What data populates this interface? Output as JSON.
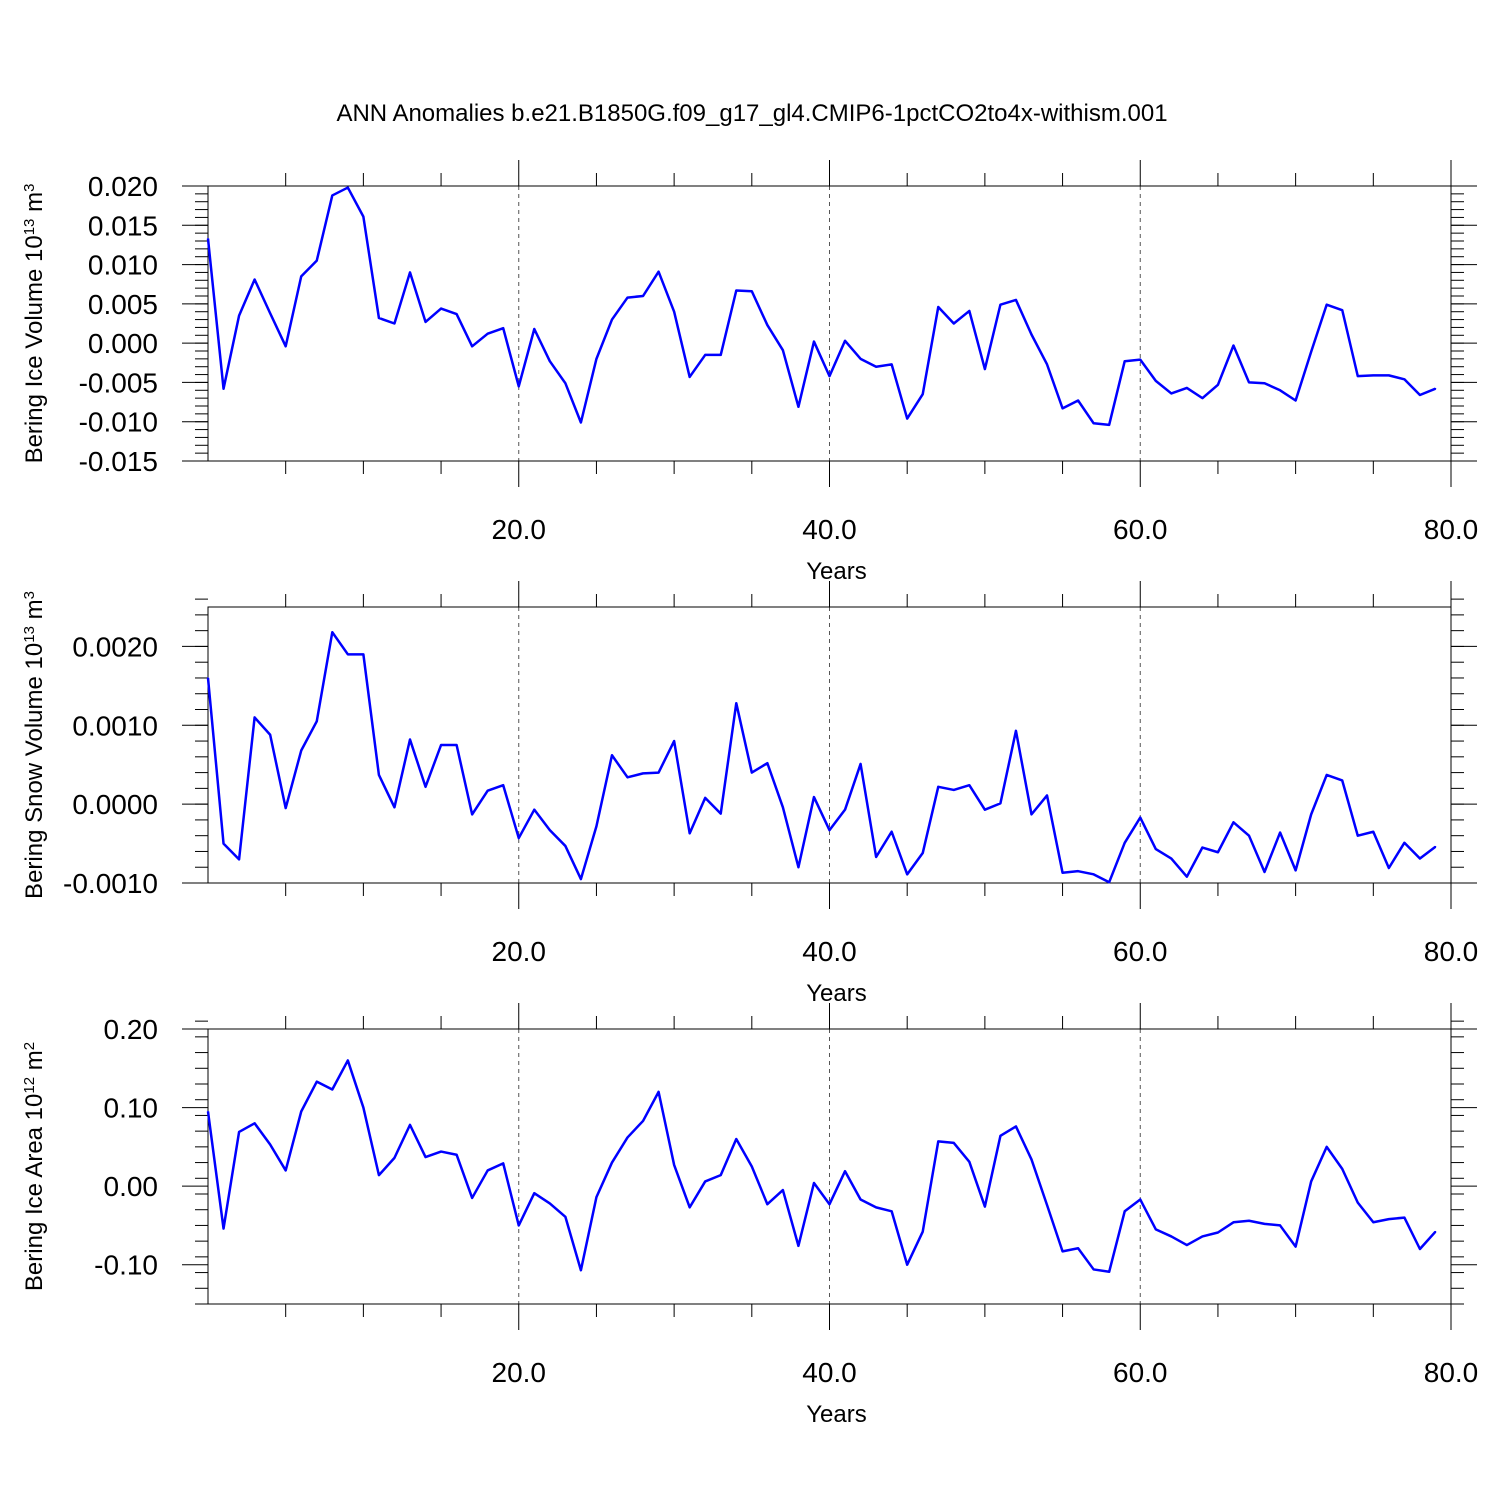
{
  "title": "ANN Anomalies b.e21.B1850G.f09_g17_gl4.CMIP6-1pctCO2to4x-withism.001",
  "colors": {
    "series": "#0000ff",
    "axis": "#000000",
    "grid": "#555555"
  },
  "chart_data": [
    {
      "type": "line",
      "ylabel": {
        "prefix": "Bering Ice Volume 10",
        "exp": "13",
        "unit": " m",
        "unit_exp": "3"
      },
      "xlabel": "Years",
      "xlim": [
        0,
        80
      ],
      "ylim": [
        -0.015,
        0.02
      ],
      "grid_x": [
        20,
        40,
        60
      ],
      "x_ticks": [
        {
          "v": 20,
          "label": "20.0"
        },
        {
          "v": 40,
          "label": "40.0"
        },
        {
          "v": 60,
          "label": "60.0"
        },
        {
          "v": 80,
          "label": "80.0"
        }
      ],
      "y_ticks": [
        {
          "v": 0.02,
          "label": "0.020"
        },
        {
          "v": 0.015,
          "label": "0.015"
        },
        {
          "v": 0.01,
          "label": "0.010"
        },
        {
          "v": 0.005,
          "label": "0.005"
        },
        {
          "v": 0.0,
          "label": "0.000"
        },
        {
          "v": -0.005,
          "label": "-0.005"
        },
        {
          "v": -0.01,
          "label": "-0.010"
        },
        {
          "v": -0.015,
          "label": "-0.015"
        }
      ],
      "x_start": 0,
      "values": [
        0.0133,
        -0.0058,
        0.0035,
        0.0081,
        0.0038,
        -0.0004,
        0.0085,
        0.0105,
        0.0188,
        0.0198,
        0.0161,
        0.0032,
        0.0025,
        0.009,
        0.0027,
        0.0044,
        0.0037,
        -0.0004,
        0.0012,
        0.0019,
        -0.0055,
        0.0018,
        -0.0023,
        -0.0051,
        -0.0101,
        -0.002,
        0.003,
        0.0058,
        0.006,
        0.0091,
        0.004,
        -0.0043,
        -0.0015,
        -0.0015,
        0.0067,
        0.0066,
        0.0023,
        -0.0009,
        -0.0081,
        0.0002,
        -0.0042,
        0.0003,
        -0.002,
        -0.003,
        -0.0027,
        -0.0096,
        -0.0065,
        0.0046,
        0.0025,
        0.0041,
        -0.0033,
        0.0049,
        0.0055,
        0.0011,
        -0.0027,
        -0.0083,
        -0.0073,
        -0.0102,
        -0.0104,
        -0.0023,
        -0.0021,
        -0.0048,
        -0.0064,
        -0.0057,
        -0.007,
        -0.0053,
        -0.0003,
        -0.005,
        -0.0051,
        -0.006,
        -0.0073,
        -0.0011,
        0.0049,
        0.0042,
        -0.0042,
        -0.0041,
        -0.0041,
        -0.0046,
        -0.0066,
        -0.0058
      ]
    },
    {
      "type": "line",
      "ylabel": {
        "prefix": "Bering Snow Volume 10",
        "exp": "13",
        "unit": " m",
        "unit_exp": "3"
      },
      "xlabel": "Years",
      "xlim": [
        0,
        80
      ],
      "ylim": [
        -0.001,
        0.0025
      ],
      "grid_x": [
        20,
        40,
        60
      ],
      "x_ticks": [
        {
          "v": 20,
          "label": "20.0"
        },
        {
          "v": 40,
          "label": "40.0"
        },
        {
          "v": 60,
          "label": "60.0"
        },
        {
          "v": 80,
          "label": "80.0"
        }
      ],
      "y_ticks": [
        {
          "v": 0.002,
          "label": "0.0020"
        },
        {
          "v": 0.001,
          "label": "0.0010"
        },
        {
          "v": 0.0,
          "label": "0.0000"
        },
        {
          "v": -0.001,
          "label": "-0.0010"
        }
      ],
      "x_start": 0,
      "values": [
        0.0016,
        -0.0005,
        -0.0007,
        0.0011,
        0.00088,
        -5e-05,
        0.00068,
        0.00105,
        0.00218,
        0.0019,
        0.0019,
        0.00037,
        -4e-05,
        0.00082,
        0.00022,
        0.00075,
        0.00075,
        -0.00013,
        0.00017,
        0.00024,
        -0.00043,
        -7e-05,
        -0.00033,
        -0.00053,
        -0.00095,
        -0.00028,
        0.00062,
        0.00034,
        0.00039,
        0.0004,
        0.0008,
        -0.00037,
        8e-05,
        -0.00012,
        0.00128,
        0.0004,
        0.00052,
        -4e-05,
        -0.0008,
        9e-05,
        -0.00033,
        -7e-05,
        0.00051,
        -0.00067,
        -0.00035,
        -0.00089,
        -0.00062,
        0.00022,
        0.00018,
        0.00024,
        -7e-05,
        1e-05,
        0.00093,
        -0.00013,
        0.00011,
        -0.00087,
        -0.00085,
        -0.00089,
        -0.00099,
        -0.00049,
        -0.00017,
        -0.00057,
        -0.00069,
        -0.00092,
        -0.00055,
        -0.00061,
        -0.00023,
        -0.0004,
        -0.00086,
        -0.00036,
        -0.00084,
        -0.00013,
        0.00037,
        0.0003,
        -0.0004,
        -0.00035,
        -0.00081,
        -0.00049,
        -0.00069,
        -0.00054
      ]
    },
    {
      "type": "line",
      "ylabel": {
        "prefix": "Bering Ice Area 10",
        "exp": "12",
        "unit": " m",
        "unit_exp": "2"
      },
      "xlabel": "Years",
      "xlim": [
        0,
        80
      ],
      "ylim": [
        -0.15,
        0.2
      ],
      "grid_x": [
        20,
        40,
        60
      ],
      "x_ticks": [
        {
          "v": 20,
          "label": "20.0"
        },
        {
          "v": 40,
          "label": "40.0"
        },
        {
          "v": 60,
          "label": "60.0"
        },
        {
          "v": 80,
          "label": "80.0"
        }
      ],
      "y_ticks": [
        {
          "v": 0.2,
          "label": "0.20"
        },
        {
          "v": 0.1,
          "label": "0.10"
        },
        {
          "v": 0.0,
          "label": "0.00"
        },
        {
          "v": -0.1,
          "label": "-0.10"
        }
      ],
      "x_start": 0,
      "values": [
        0.095,
        -0.054,
        0.069,
        0.08,
        0.053,
        0.02,
        0.095,
        0.133,
        0.123,
        0.16,
        0.1,
        0.014,
        0.036,
        0.078,
        0.037,
        0.044,
        0.04,
        -0.015,
        0.02,
        0.029,
        -0.05,
        -0.009,
        -0.022,
        -0.039,
        -0.107,
        -0.014,
        0.03,
        0.062,
        0.083,
        0.12,
        0.027,
        -0.027,
        0.006,
        0.014,
        0.06,
        0.025,
        -0.023,
        -0.005,
        -0.076,
        0.004,
        -0.023,
        0.019,
        -0.017,
        -0.027,
        -0.032,
        -0.1,
        -0.058,
        0.057,
        0.055,
        0.031,
        -0.026,
        0.064,
        0.076,
        0.034,
        -0.024,
        -0.083,
        -0.079,
        -0.106,
        -0.109,
        -0.032,
        -0.017,
        -0.055,
        -0.064,
        -0.075,
        -0.064,
        -0.059,
        -0.046,
        -0.044,
        -0.048,
        -0.05,
        -0.077,
        0.006,
        0.05,
        0.022,
        -0.021,
        -0.046,
        -0.042,
        -0.04,
        -0.08,
        -0.058
      ]
    }
  ]
}
